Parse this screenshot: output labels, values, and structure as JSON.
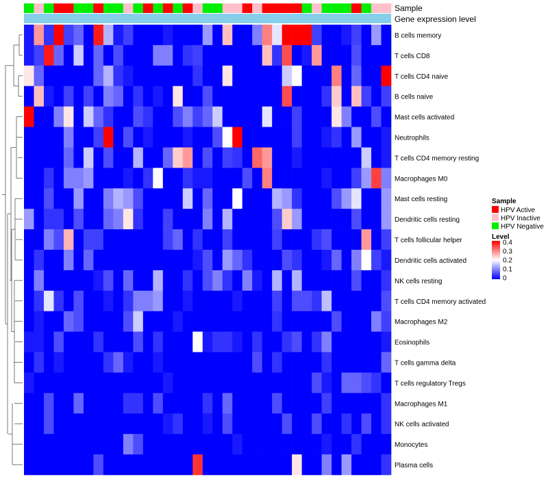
{
  "chart_data": {
    "type": "heatmap",
    "annotation_titles": {
      "sample": "Sample",
      "gene": "Gene expression level"
    },
    "legend": {
      "sample_title": "Sample",
      "groups": [
        {
          "name": "HPV Active",
          "color": "#ff0000"
        },
        {
          "name": "HPV Inactive",
          "color": "#ffc0cb"
        },
        {
          "name": "HPV Negative",
          "color": "#00ee00"
        }
      ],
      "level_title": "Level",
      "level_ticks": [
        "0.4",
        "0.3",
        "0.2",
        "0.1",
        "0"
      ],
      "level_range": [
        0,
        0.4
      ]
    },
    "color_scale": {
      "low": "#0000ff",
      "mid": "#ffffff",
      "high": "#ff0000"
    },
    "gene_bar_color": "#87ceeb",
    "sample_groups": [
      "N",
      "I",
      "N",
      "A",
      "A",
      "N",
      "N",
      "A",
      "N",
      "N",
      "I",
      "N",
      "A",
      "N",
      "A",
      "N",
      "A",
      "I",
      "N",
      "N",
      "I",
      "I",
      "A",
      "I",
      "A",
      "A",
      "A",
      "A",
      "N",
      "I",
      "N",
      "N",
      "N",
      "A",
      "N",
      "I",
      "I"
    ],
    "rows": [
      "B cells memory",
      "T cells CD8",
      "T cells CD4 naive",
      "B cells naive",
      "Mast cells activated",
      "Neutrophils",
      "T cells CD4 memory resting",
      "Macrophages M0",
      "Mast cells resting",
      "Dendritic cells resting",
      "T cells follicular helper",
      "Dendritic cells activated",
      "NK cells resting",
      "T cells CD4 memory activated",
      "Macrophages M2",
      "Eosinophils",
      "T cells gamma delta",
      "T cells regulatory  Tregs",
      "Macrophages M1",
      "NK cells activated",
      "Monocytes",
      "Plasma cells"
    ],
    "values": [
      [
        0.02,
        0.28,
        0.04,
        0.4,
        0.05,
        0.08,
        0.0,
        0.38,
        0.14,
        0.02,
        0.05,
        0.0,
        0.0,
        0.0,
        0.02,
        0.0,
        0.0,
        0.0,
        0.12,
        0.0,
        0.25,
        0.0,
        0.0,
        0.1,
        0.3,
        0.18,
        0.4,
        0.4,
        0.4,
        0.05,
        0.0,
        0.0,
        0.02,
        0.05,
        0.0,
        0.12,
        0.0
      ],
      [
        0.02,
        0.05,
        0.38,
        0.08,
        0.0,
        0.16,
        0.0,
        0.08,
        0.0,
        0.06,
        0.0,
        0.0,
        0.0,
        0.1,
        0.1,
        0.0,
        0.04,
        0.05,
        0.0,
        0.0,
        0.0,
        0.0,
        0.0,
        0.0,
        0.25,
        0.04,
        0.34,
        0.0,
        0.02,
        0.28,
        0.0,
        0.0,
        0.0,
        0.06,
        0.0,
        0.0,
        0.0
      ],
      [
        0.22,
        0.08,
        0.0,
        0.0,
        0.0,
        0.0,
        0.0,
        0.08,
        0.14,
        0.04,
        0.02,
        0.0,
        0.0,
        0.0,
        0.0,
        0.0,
        0.0,
        0.04,
        0.0,
        0.0,
        0.22,
        0.0,
        0.0,
        0.0,
        0.0,
        0.0,
        0.16,
        0.2,
        0.0,
        0.0,
        0.0,
        0.3,
        0.0,
        0.08,
        0.0,
        0.0,
        0.4
      ],
      [
        0.0,
        0.25,
        0.02,
        0.0,
        0.05,
        0.0,
        0.05,
        0.0,
        0.1,
        0.08,
        0.0,
        0.04,
        0.0,
        0.02,
        0.0,
        0.22,
        0.0,
        0.0,
        0.06,
        0.0,
        0.0,
        0.0,
        0.0,
        0.0,
        0.0,
        0.0,
        0.34,
        0.0,
        0.0,
        0.0,
        0.04,
        0.24,
        0.0,
        0.25,
        0.05,
        0.0,
        0.05
      ],
      [
        0.4,
        0.0,
        0.0,
        0.1,
        0.22,
        0.0,
        0.16,
        0.08,
        0.04,
        0.0,
        0.0,
        0.06,
        0.04,
        0.0,
        0.0,
        0.06,
        0.1,
        0.05,
        0.08,
        0.16,
        0.0,
        0.0,
        0.0,
        0.0,
        0.18,
        0.0,
        0.0,
        0.05,
        0.0,
        0.0,
        0.0,
        0.22,
        0.1,
        0.0,
        0.0,
        0.06,
        0.0
      ],
      [
        0.0,
        0.0,
        0.0,
        0.0,
        0.1,
        0.0,
        0.0,
        0.05,
        0.4,
        0.0,
        0.06,
        0.0,
        0.02,
        0.0,
        0.0,
        0.0,
        0.02,
        0.0,
        0.0,
        0.06,
        0.2,
        0.4,
        0.0,
        0.0,
        0.0,
        0.0,
        0.0,
        0.05,
        0.0,
        0.0,
        0.02,
        0.04,
        0.0,
        0.12,
        0.0,
        0.0,
        0.02
      ],
      [
        0.0,
        0.0,
        0.0,
        0.0,
        0.08,
        0.0,
        0.16,
        0.0,
        0.06,
        0.0,
        0.0,
        0.14,
        0.0,
        0.0,
        0.08,
        0.24,
        0.28,
        0.0,
        0.06,
        0.0,
        0.05,
        0.04,
        0.0,
        0.32,
        0.28,
        0.0,
        0.0,
        0.02,
        0.0,
        0.0,
        0.0,
        0.0,
        0.0,
        0.0,
        0.16,
        0.0,
        0.02
      ],
      [
        0.0,
        0.0,
        0.04,
        0.0,
        0.1,
        0.1,
        0.12,
        0.0,
        0.0,
        0.0,
        0.02,
        0.0,
        0.04,
        0.2,
        0.0,
        0.0,
        0.04,
        0.02,
        0.02,
        0.0,
        0.0,
        0.0,
        0.06,
        0.0,
        0.3,
        0.0,
        0.0,
        0.0,
        0.0,
        0.0,
        0.02,
        0.0,
        0.0,
        0.05,
        0.12,
        0.35,
        0.1
      ],
      [
        0.0,
        0.0,
        0.06,
        0.0,
        0.0,
        0.12,
        0.0,
        0.0,
        0.1,
        0.14,
        0.12,
        0.06,
        0.0,
        0.0,
        0.0,
        0.0,
        0.16,
        0.0,
        0.08,
        0.0,
        0.0,
        0.2,
        0.0,
        0.0,
        0.0,
        0.14,
        0.12,
        0.04,
        0.0,
        0.0,
        0.0,
        0.06,
        0.12,
        0.18,
        0.0,
        0.0,
        0.12
      ],
      [
        0.12,
        0.0,
        0.04,
        0.04,
        0.0,
        0.06,
        0.0,
        0.0,
        0.08,
        0.1,
        0.22,
        0.04,
        0.0,
        0.0,
        0.05,
        0.0,
        0.0,
        0.0,
        0.1,
        0.0,
        0.14,
        0.0,
        0.0,
        0.0,
        0.0,
        0.06,
        0.24,
        0.12,
        0.0,
        0.0,
        0.0,
        0.0,
        0.0,
        0.06,
        0.0,
        0.0,
        0.12
      ],
      [
        0.0,
        0.0,
        0.1,
        0.06,
        0.26,
        0.0,
        0.05,
        0.05,
        0.0,
        0.0,
        0.0,
        0.0,
        0.0,
        0.0,
        0.05,
        0.08,
        0.0,
        0.04,
        0.0,
        0.0,
        0.05,
        0.0,
        0.0,
        0.0,
        0.0,
        0.05,
        0.0,
        0.0,
        0.0,
        0.04,
        0.06,
        0.0,
        0.0,
        0.0,
        0.28,
        0.0,
        0.05
      ],
      [
        0.0,
        0.04,
        0.0,
        0.0,
        0.1,
        0.0,
        0.08,
        0.0,
        0.0,
        0.0,
        0.0,
        0.0,
        0.0,
        0.0,
        0.0,
        0.0,
        0.0,
        0.02,
        0.06,
        0.0,
        0.12,
        0.08,
        0.04,
        0.0,
        0.0,
        0.0,
        0.06,
        0.04,
        0.0,
        0.0,
        0.02,
        0.08,
        0.0,
        0.1,
        0.2,
        0.05,
        0.02
      ],
      [
        0.0,
        0.1,
        0.0,
        0.0,
        0.0,
        0.0,
        0.0,
        0.02,
        0.06,
        0.0,
        0.08,
        0.0,
        0.0,
        0.14,
        0.0,
        0.0,
        0.04,
        0.0,
        0.06,
        0.1,
        0.04,
        0.0,
        0.1,
        0.02,
        0.0,
        0.14,
        0.0,
        0.14,
        0.0,
        0.0,
        0.0,
        0.0,
        0.0,
        0.06,
        0.0,
        0.0,
        0.04
      ],
      [
        0.0,
        0.04,
        0.18,
        0.04,
        0.0,
        0.06,
        0.0,
        0.0,
        0.02,
        0.0,
        0.04,
        0.1,
        0.1,
        0.12,
        0.0,
        0.0,
        0.02,
        0.0,
        0.0,
        0.0,
        0.0,
        0.02,
        0.0,
        0.0,
        0.0,
        0.05,
        0.0,
        0.06,
        0.06,
        0.04,
        0.15,
        0.0,
        0.0,
        0.0,
        0.0,
        0.0,
        0.06
      ],
      [
        0.0,
        0.02,
        0.0,
        0.0,
        0.08,
        0.06,
        0.0,
        0.0,
        0.0,
        0.0,
        0.06,
        0.16,
        0.0,
        0.0,
        0.0,
        0.02,
        0.0,
        0.0,
        0.0,
        0.0,
        0.0,
        0.0,
        0.0,
        0.0,
        0.0,
        0.04,
        0.0,
        0.0,
        0.0,
        0.0,
        0.0,
        0.06,
        0.0,
        0.0,
        0.0,
        0.1,
        0.05
      ],
      [
        0.02,
        0.02,
        0.0,
        0.06,
        0.0,
        0.0,
        0.0,
        0.04,
        0.0,
        0.0,
        0.0,
        0.06,
        0.0,
        0.04,
        0.0,
        0.0,
        0.0,
        0.2,
        0.02,
        0.04,
        0.04,
        0.02,
        0.0,
        0.04,
        0.0,
        0.0,
        0.04,
        0.06,
        0.0,
        0.04,
        0.1,
        0.0,
        0.0,
        0.0,
        0.0,
        0.0,
        0.02
      ],
      [
        0.0,
        0.04,
        0.0,
        0.02,
        0.0,
        0.0,
        0.0,
        0.0,
        0.04,
        0.08,
        0.02,
        0.0,
        0.0,
        0.02,
        0.0,
        0.0,
        0.0,
        0.0,
        0.0,
        0.0,
        0.0,
        0.0,
        0.0,
        0.06,
        0.0,
        0.04,
        0.0,
        0.0,
        0.0,
        0.0,
        0.04,
        0.0,
        0.0,
        0.0,
        0.0,
        0.0,
        0.08
      ],
      [
        0.02,
        0.0,
        0.0,
        0.0,
        0.0,
        0.0,
        0.0,
        0.0,
        0.0,
        0.0,
        0.0,
        0.0,
        0.0,
        0.0,
        0.02,
        0.0,
        0.0,
        0.0,
        0.0,
        0.0,
        0.0,
        0.0,
        0.0,
        0.0,
        0.0,
        0.0,
        0.0,
        0.0,
        0.0,
        0.06,
        0.02,
        0.0,
        0.08,
        0.08,
        0.06,
        0.04,
        0.0
      ],
      [
        0.0,
        0.0,
        0.06,
        0.0,
        0.0,
        0.08,
        0.0,
        0.0,
        0.0,
        0.0,
        0.04,
        0.04,
        0.0,
        0.06,
        0.0,
        0.0,
        0.0,
        0.0,
        0.04,
        0.0,
        0.08,
        0.0,
        0.0,
        0.0,
        0.0,
        0.06,
        0.0,
        0.0,
        0.0,
        0.0,
        0.05,
        0.0,
        0.0,
        0.0,
        0.0,
        0.0,
        0.04
      ],
      [
        0.0,
        0.0,
        0.06,
        0.0,
        0.0,
        0.0,
        0.0,
        0.0,
        0.0,
        0.0,
        0.0,
        0.0,
        0.0,
        0.0,
        0.02,
        0.04,
        0.0,
        0.0,
        0.02,
        0.0,
        0.06,
        0.0,
        0.0,
        0.0,
        0.0,
        0.0,
        0.06,
        0.0,
        0.0,
        0.06,
        0.0,
        0.0,
        0.04,
        0.0,
        0.06,
        0.0,
        0.04
      ],
      [
        0.0,
        0.0,
        0.0,
        0.0,
        0.0,
        0.0,
        0.0,
        0.0,
        0.0,
        0.0,
        0.1,
        0.06,
        0.0,
        0.0,
        0.0,
        0.0,
        0.0,
        0.0,
        0.0,
        0.0,
        0.0,
        0.02,
        0.0,
        0.0,
        0.0,
        0.0,
        0.0,
        0.0,
        0.0,
        0.0,
        0.02,
        0.0,
        0.0,
        0.04,
        0.0,
        0.0,
        0.0
      ],
      [
        0.0,
        0.0,
        0.0,
        0.0,
        0.0,
        0.0,
        0.0,
        0.06,
        0.0,
        0.0,
        0.0,
        0.0,
        0.0,
        0.0,
        0.0,
        0.0,
        0.0,
        0.36,
        0.0,
        0.0,
        0.0,
        0.0,
        0.0,
        0.0,
        0.0,
        0.0,
        0.0,
        0.22,
        0.0,
        0.0,
        0.1,
        0.0,
        0.12,
        0.0,
        0.0,
        0.0,
        0.04
      ]
    ]
  }
}
